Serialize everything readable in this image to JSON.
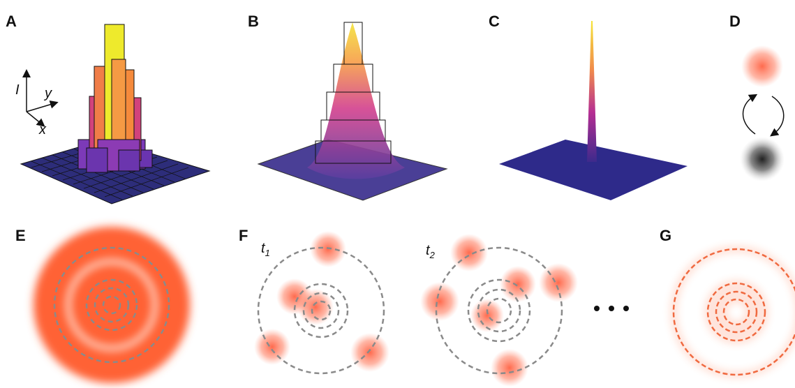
{
  "panels": {
    "a": {
      "label": "A",
      "axes": {
        "i": "I",
        "y": "y",
        "x": "x"
      }
    },
    "b": {
      "label": "B"
    },
    "c": {
      "label": "C"
    },
    "d": {
      "label": "D"
    },
    "e": {
      "label": "E"
    },
    "f": {
      "label": "F",
      "t1": {
        "text": "t",
        "subscript": "1"
      },
      "t2": {
        "text": "t",
        "subscript": "2"
      }
    },
    "g": {
      "label": "G"
    }
  }
}
